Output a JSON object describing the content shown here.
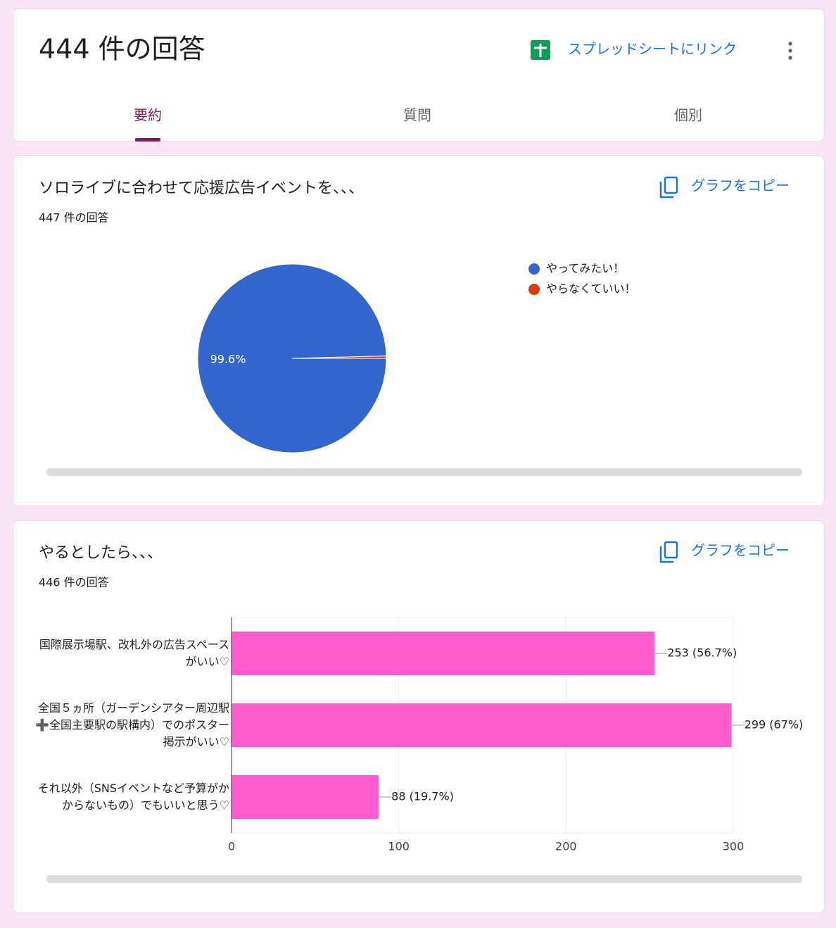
{
  "header": {
    "title": "444 件の回答",
    "sheet_link": "スプレッドシートにリンク"
  },
  "tabs": [
    "要約",
    "質問",
    "個別"
  ],
  "copy_buttons": [
    "グラフをコピー",
    "グラフをコピー"
  ],
  "chart_data": [
    {
      "type": "pie",
      "title": "ソロライブに合わせて応援広告イベントを、、、",
      "subtitle": "447 件の回答",
      "categories": [
        "やってみたい！",
        "やらなくていい！"
      ],
      "values": [
        99.6,
        0.4
      ],
      "value_labels": [
        "99.6%",
        null
      ],
      "colors": [
        "#3366cc",
        "#dc3912"
      ]
    },
    {
      "type": "bar",
      "title": "やるとしたら、、、",
      "subtitle": "446 件の回答",
      "categories": [
        "国際展示場駅、改札外の広告スペースがいい♡",
        "全国５ヵ所（ガーデンシアター周辺駅➕全国主要駅の駅構内）でのポスター掲示がいい♡",
        "それ以外（SNSイベントなど予算がかからないもの）でもいいと思う♡"
      ],
      "values": [
        253,
        299,
        88
      ],
      "value_labels": [
        "253 (56.7%)",
        "299 (67%)",
        "88 (19.7%)"
      ],
      "color": "#ff5cd0",
      "xlim": [
        0,
        300
      ],
      "xticks": [
        0,
        100,
        200,
        300
      ],
      "grid": true
    }
  ]
}
